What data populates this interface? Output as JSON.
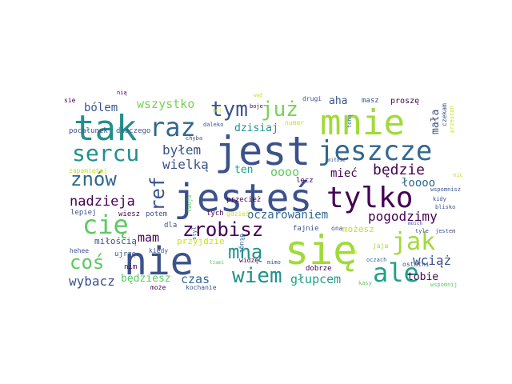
{
  "words": [
    {
      "text": "jest",
      "color": "#3b528b"
    },
    {
      "text": "jesteś",
      "color": "#3b528b"
    },
    {
      "text": "się",
      "color": "#a0da39"
    },
    {
      "text": "nie",
      "color": "#3b528b"
    },
    {
      "text": "mnie",
      "color": "#a0da39"
    },
    {
      "text": "tak",
      "color": "#21908d"
    },
    {
      "text": "jeszcze",
      "color": "#31688e"
    },
    {
      "text": "tylko",
      "color": "#440154"
    },
    {
      "text": "raz",
      "color": "#31688e"
    },
    {
      "text": "ale",
      "color": "#1fa187"
    },
    {
      "text": "cię",
      "color": "#5ec962"
    },
    {
      "text": "sercu",
      "color": "#21908d"
    },
    {
      "text": "jak",
      "color": "#a0da39"
    },
    {
      "text": "zrobisz",
      "color": "#440154"
    },
    {
      "text": "tym",
      "color": "#3b528b"
    },
    {
      "text": "już",
      "color": "#7ad151"
    },
    {
      "text": "wiem",
      "color": "#21908d"
    },
    {
      "text": "mną",
      "color": "#21908d"
    },
    {
      "text": "znów",
      "color": "#31688e"
    },
    {
      "text": "ref",
      "color": "#3b528b"
    },
    {
      "text": "coś",
      "color": "#5ec962"
    },
    {
      "text": "będzie",
      "color": "#440154"
    },
    {
      "text": "nadzieja",
      "color": "#440154"
    },
    {
      "text": "wszystko",
      "color": "#7ad151"
    },
    {
      "text": "byłem",
      "color": "#3b528b"
    },
    {
      "text": "wielką",
      "color": "#3b528b"
    },
    {
      "text": "pogodzimy",
      "color": "#440154"
    },
    {
      "text": "oczarowaniem",
      "color": "#31688e"
    },
    {
      "text": "głupcem",
      "color": "#1fa187"
    },
    {
      "text": "wybacz",
      "color": "#3b528b"
    },
    {
      "text": "wciąż",
      "color": "#3b528b"
    },
    {
      "text": "czas",
      "color": "#31688e"
    },
    {
      "text": "mam",
      "color": "#440154"
    },
    {
      "text": "bólem",
      "color": "#3b528b"
    },
    {
      "text": "mieć",
      "color": "#440154"
    },
    {
      "text": "łoooo",
      "color": "#31688e"
    },
    {
      "text": "oooo",
      "color": "#5ec962"
    },
    {
      "text": "ten",
      "color": "#1fa187"
    },
    {
      "text": "dzisiaj",
      "color": "#21908d"
    },
    {
      "text": "aha",
      "color": "#3b528b"
    },
    {
      "text": "mała",
      "color": "#3b528b"
    },
    {
      "text": "tobie",
      "color": "#440154"
    },
    {
      "text": "będziesz",
      "color": "#5ec962"
    },
    {
      "text": "miłością",
      "color": "#3b528b"
    },
    {
      "text": "możesz",
      "color": "#c8e020"
    },
    {
      "text": "przyjdzie",
      "color": "#c8e020"
    },
    {
      "text": "pocałunek",
      "color": "#3b528b"
    },
    {
      "text": "dlaczego",
      "color": "#3b528b"
    },
    {
      "text": "zapamiętaj",
      "color": "#c8e020"
    },
    {
      "text": "lepiej",
      "color": "#3b528b"
    },
    {
      "text": "wiesz",
      "color": "#440154"
    },
    {
      "text": "potem",
      "color": "#3b528b"
    },
    {
      "text": "tych",
      "color": "#440154"
    },
    {
      "text": "gdzieś",
      "color": "#c8e020"
    },
    {
      "text": "dla",
      "color": "#3b528b"
    },
    {
      "text": "kiedy",
      "color": "#3b528b"
    },
    {
      "text": "ujrzę",
      "color": "#3b528b"
    },
    {
      "text": "hehee",
      "color": "#3b528b"
    },
    {
      "text": "nim",
      "color": "#440154"
    },
    {
      "text": "może",
      "color": "#440154"
    },
    {
      "text": "kochanie",
      "color": "#3b528b"
    },
    {
      "text": "długi",
      "color": "#31688e"
    },
    {
      "text": "widzę",
      "color": "#440154"
    },
    {
      "text": "mimo",
      "color": "#3b528b"
    },
    {
      "text": "przecież",
      "color": "#440154"
    },
    {
      "text": "fajnie",
      "color": "#3b528b"
    },
    {
      "text": "ona",
      "color": "#3b528b"
    },
    {
      "text": "dobrze",
      "color": "#440154"
    },
    {
      "text": "jaja",
      "color": "#a0da39"
    },
    {
      "text": "oczach",
      "color": "#31688e"
    },
    {
      "text": "ostatni",
      "color": "#3b528b"
    },
    {
      "text": "wspomnij",
      "color": "#5ec962"
    },
    {
      "text": "kasy",
      "color": "#5ec962"
    },
    {
      "text": "tyle",
      "color": "#3b528b"
    },
    {
      "text": "jestem",
      "color": "#3b528b"
    },
    {
      "text": "moich",
      "color": "#3b528b"
    },
    {
      "text": "blisko",
      "color": "#3b528b"
    },
    {
      "text": "kidy",
      "color": "#3b528b"
    },
    {
      "text": "wspomnisz",
      "color": "#3b528b"
    },
    {
      "text": "nic",
      "color": "#c8e020"
    },
    {
      "text": "nas",
      "color": "#c8e020"
    },
    {
      "text": "lecz",
      "color": "#440154"
    },
    {
      "text": "miłość",
      "color": "#3b528b"
    },
    {
      "text": "toną",
      "color": "#31688e"
    },
    {
      "text": "czekam",
      "color": "#3b528b"
    },
    {
      "text": "przestań",
      "color": "#c8e020"
    },
    {
      "text": "masz",
      "color": "#3b528b"
    },
    {
      "text": "proszę",
      "color": "#440154"
    },
    {
      "text": "drugi",
      "color": "#3b528b"
    },
    {
      "text": "numer",
      "color": "#c8e020"
    },
    {
      "text": "boje",
      "color": "#440154"
    },
    {
      "text": "wad",
      "color": "#c8e020"
    },
    {
      "text": "nią",
      "color": "#440154"
    },
    {
      "text": "sie",
      "color": "#440154"
    },
    {
      "text": "daleko",
      "color": "#3b528b"
    },
    {
      "text": "chyba",
      "color": "#3b528b"
    },
    {
      "text": "styl",
      "color": "#3b528b"
    },
    {
      "text": "twoja",
      "color": "#5ec962"
    },
    {
      "text": "łzami",
      "color": "#5ec962"
    },
    {
      "text": "mój",
      "color": "#c8e020"
    }
  ]
}
